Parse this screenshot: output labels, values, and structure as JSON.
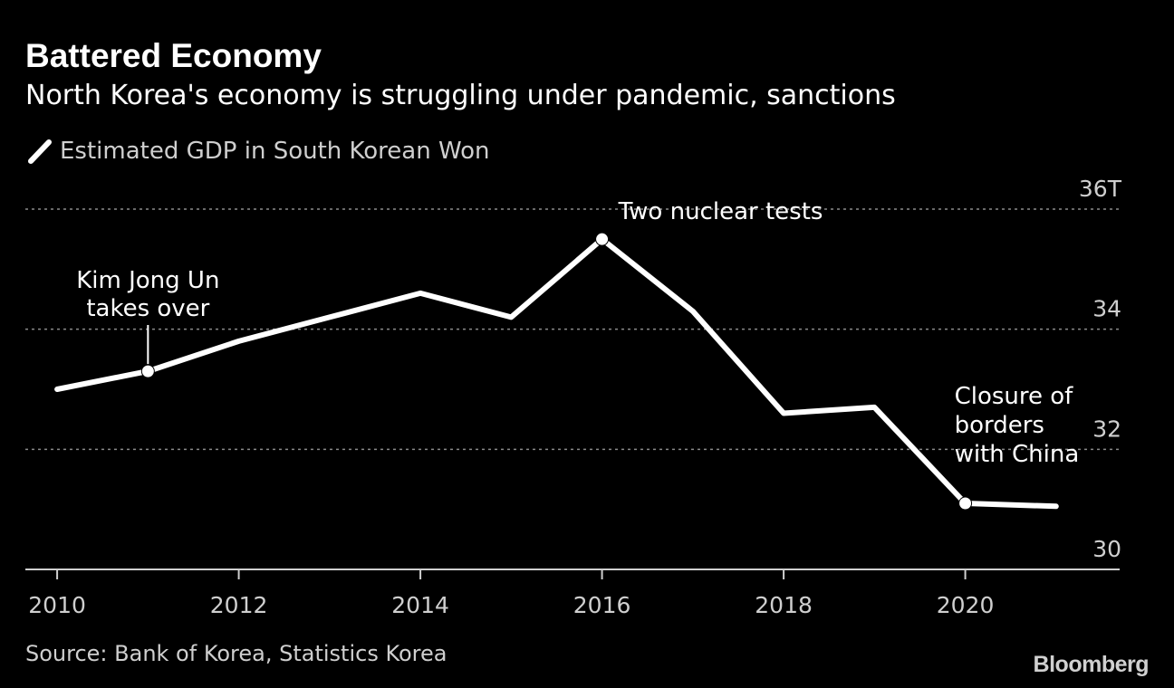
{
  "chart_data": {
    "type": "line",
    "title": "Battered Economy",
    "subtitle": "North Korea's economy is struggling under pandemic, sanctions",
    "legend": {
      "position": "top-left",
      "entries": [
        "Estimated GDP in South Korean Won"
      ]
    },
    "series": [
      {
        "name": "Estimated GDP in South Korean Won",
        "x": [
          2010,
          2011,
          2012,
          2013,
          2014,
          2015,
          2016,
          2017,
          2018,
          2019,
          2020,
          2021
        ],
        "values": [
          33.0,
          33.3,
          33.8,
          34.2,
          34.6,
          34.2,
          35.5,
          34.3,
          32.6,
          32.7,
          31.1,
          31.05
        ]
      }
    ],
    "xlim": [
      2009.65,
      2021.7
    ],
    "ylim": [
      30,
      36
    ],
    "x_ticks": [
      2010,
      2012,
      2014,
      2016,
      2018,
      2020
    ],
    "x_tick_labels": [
      "2010",
      "2012",
      "2014",
      "2016",
      "2018",
      "2020"
    ],
    "y_ticks": [
      30,
      32,
      34,
      36
    ],
    "y_tick_labels": [
      "30",
      "32",
      "34",
      "36T"
    ],
    "grid": true,
    "y_axis_position": "right",
    "annotations": [
      {
        "x": 2011,
        "y": 33.3,
        "text_lines": [
          "Kim Jong Un",
          "takes over"
        ]
      },
      {
        "x": 2016,
        "y": 35.5,
        "text_lines": [
          "Two nuclear tests"
        ]
      },
      {
        "x": 2020,
        "y": 31.1,
        "text_lines": [
          "Closure of",
          "borders",
          "with China"
        ]
      }
    ],
    "source": "Source: Bank of Korea, Statistics Korea",
    "brand": "Bloomberg"
  },
  "colors": {
    "background": "#000000",
    "line": "#ffffff",
    "gridline": "#8a8a8a",
    "tick_label": "#cfcfcf",
    "annotation": "#ffffff"
  }
}
